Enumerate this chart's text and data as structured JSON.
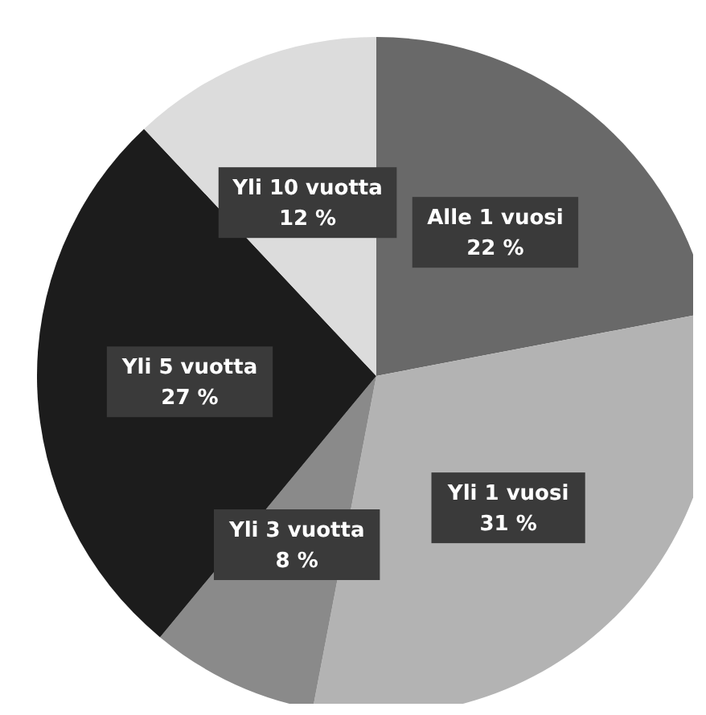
{
  "chart_data": {
    "type": "pie",
    "categories": [
      "Alle 1 vuosi",
      "Yli 1 vuosi",
      "Yli 3 vuotta",
      "Yli 5 vuotta",
      "Yli 10 vuotta"
    ],
    "values": [
      22,
      31,
      8,
      27,
      12
    ],
    "colors": [
      "#696969",
      "#b3b3b3",
      "#8a8a8a",
      "#1c1c1c",
      "#dcdcdc"
    ],
    "value_labels": [
      "22 %",
      "31 %",
      "8 %",
      "27 %",
      "12 %"
    ],
    "legend": false
  }
}
